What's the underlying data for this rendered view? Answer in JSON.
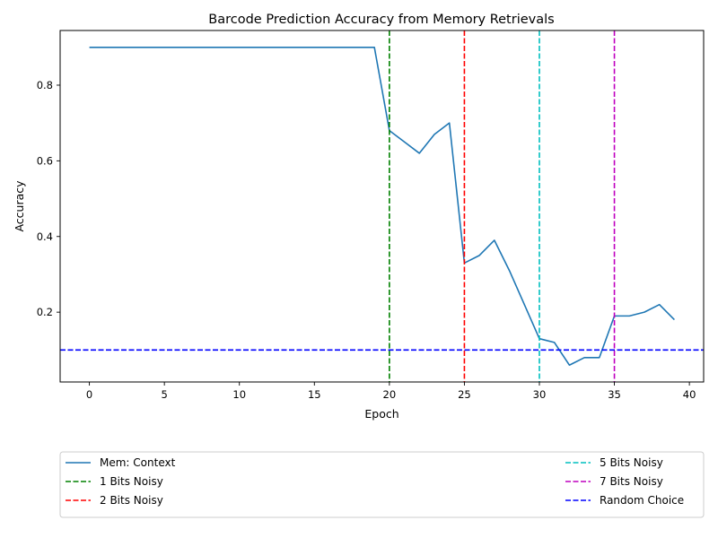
{
  "chart_data": {
    "type": "line",
    "title": "Barcode Prediction Accuracy from Memory Retrievals",
    "xlabel": "Epoch",
    "ylabel": "Accuracy",
    "xlim": [
      -1.95,
      40.95
    ],
    "ylim": [
      0.0155,
      0.9445
    ],
    "xticks": [
      0,
      5,
      10,
      15,
      20,
      25,
      30,
      35,
      40
    ],
    "yticks": [
      0.2,
      0.4,
      0.6,
      0.8
    ],
    "grid": false,
    "legend_position": "below",
    "series": [
      {
        "name": "Mem: Context",
        "color": "#1f77b4",
        "style": "solid",
        "x": [
          0,
          1,
          2,
          3,
          4,
          5,
          6,
          7,
          8,
          9,
          10,
          11,
          12,
          13,
          14,
          15,
          16,
          17,
          18,
          19,
          20,
          21,
          22,
          23,
          24,
          25,
          26,
          27,
          28,
          29,
          30,
          31,
          32,
          33,
          34,
          35,
          36,
          37,
          38,
          39
        ],
        "values": [
          0.9,
          0.9,
          0.9,
          0.9,
          0.9,
          0.9,
          0.9,
          0.9,
          0.9,
          0.9,
          0.9,
          0.9,
          0.9,
          0.9,
          0.9,
          0.9,
          0.9,
          0.9,
          0.9,
          0.9,
          0.68,
          0.65,
          0.62,
          0.67,
          0.7,
          0.33,
          0.35,
          0.39,
          0.31,
          0.22,
          0.13,
          0.12,
          0.06,
          0.08,
          0.08,
          0.19,
          0.19,
          0.2,
          0.22,
          0.18
        ]
      }
    ],
    "vlines": [
      {
        "name": "1 Bits Noisy",
        "x": 20,
        "color": "#008000"
      },
      {
        "name": "2 Bits Noisy",
        "x": 25,
        "color": "#ff0000"
      },
      {
        "name": "5 Bits Noisy",
        "x": 30,
        "color": "#00bfbf"
      },
      {
        "name": "7 Bits Noisy",
        "x": 35,
        "color": "#bf00bf"
      }
    ],
    "hlines": [
      {
        "name": "Random Choice",
        "y": 0.1,
        "color": "#0000ff"
      }
    ],
    "legend": [
      {
        "label": "Mem: Context",
        "color": "#1f77b4",
        "style": "solid"
      },
      {
        "label": "1 Bits Noisy",
        "color": "#008000",
        "style": "dashed"
      },
      {
        "label": "2 Bits Noisy",
        "color": "#ff0000",
        "style": "dashed"
      },
      {
        "label": "5 Bits Noisy",
        "color": "#00bfbf",
        "style": "dashed"
      },
      {
        "label": "7 Bits Noisy",
        "color": "#bf00bf",
        "style": "dashed"
      },
      {
        "label": "Random Choice",
        "color": "#0000ff",
        "style": "dashed"
      }
    ]
  }
}
